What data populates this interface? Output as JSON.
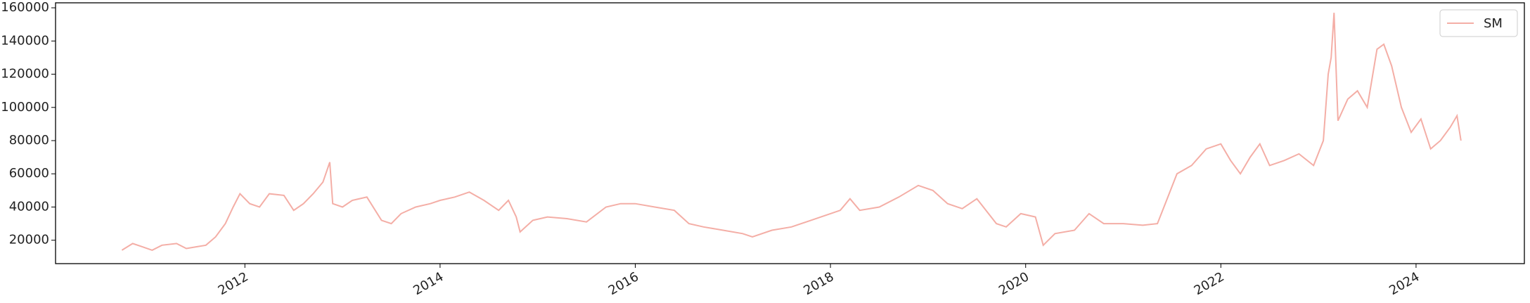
{
  "chart_data": {
    "type": "line",
    "x": [
      2010.74,
      2010.85,
      2010.95,
      2011.05,
      2011.15,
      2011.3,
      2011.4,
      2011.5,
      2011.6,
      2011.7,
      2011.8,
      2011.88,
      2011.95,
      2012.05,
      2012.15,
      2012.25,
      2012.4,
      2012.5,
      2012.6,
      2012.7,
      2012.8,
      2012.87,
      2012.9,
      2013.0,
      2013.1,
      2013.25,
      2013.4,
      2013.5,
      2013.6,
      2013.75,
      2013.9,
      2014.0,
      2014.15,
      2014.3,
      2014.45,
      2014.6,
      2014.7,
      2014.78,
      2014.82,
      2014.95,
      2015.1,
      2015.3,
      2015.5,
      2015.7,
      2015.85,
      2016.0,
      2016.2,
      2016.4,
      2016.55,
      2016.7,
      2016.9,
      2017.1,
      2017.2,
      2017.4,
      2017.6,
      2017.8,
      2018.0,
      2018.1,
      2018.2,
      2018.3,
      2018.5,
      2018.7,
      2018.9,
      2019.05,
      2019.2,
      2019.35,
      2019.5,
      2019.7,
      2019.8,
      2019.95,
      2020.1,
      2020.18,
      2020.3,
      2020.5,
      2020.65,
      2020.8,
      2021.0,
      2021.2,
      2021.35,
      2021.45,
      2021.55,
      2021.7,
      2021.85,
      2022.0,
      2022.1,
      2022.2,
      2022.3,
      2022.4,
      2022.5,
      2022.65,
      2022.8,
      2022.95,
      2023.05,
      2023.1,
      2023.13,
      2023.16,
      2023.2,
      2023.3,
      2023.4,
      2023.5,
      2023.6,
      2023.67,
      2023.75,
      2023.85,
      2023.95,
      2024.05,
      2024.15,
      2024.25,
      2024.35,
      2024.42,
      2024.46
    ],
    "series": [
      {
        "name": "SM",
        "color": "#f4aea6",
        "values": [
          14000,
          18000,
          16000,
          14000,
          17000,
          18000,
          15000,
          16000,
          17000,
          22000,
          30000,
          40000,
          48000,
          42000,
          40000,
          48000,
          47000,
          38000,
          42000,
          48000,
          55000,
          67000,
          42000,
          40000,
          44000,
          46000,
          32000,
          30000,
          36000,
          40000,
          42000,
          44000,
          46000,
          49000,
          44000,
          38000,
          44000,
          34000,
          25000,
          32000,
          34000,
          33000,
          31000,
          40000,
          42000,
          42000,
          40000,
          38000,
          30000,
          28000,
          26000,
          24000,
          22000,
          26000,
          28000,
          32000,
          36000,
          38000,
          45000,
          38000,
          40000,
          46000,
          53000,
          50000,
          42000,
          39000,
          45000,
          30000,
          28000,
          36000,
          34000,
          17000,
          24000,
          26000,
          36000,
          30000,
          30000,
          29000,
          30000,
          45000,
          60000,
          65000,
          75000,
          78000,
          68000,
          60000,
          70000,
          78000,
          65000,
          68000,
          72000,
          65000,
          80000,
          120000,
          130000,
          157000,
          92000,
          105000,
          110000,
          100000,
          135000,
          138000,
          125000,
          100000,
          85000,
          93000,
          75000,
          80000,
          88000,
          95000,
          80000
        ]
      }
    ],
    "xlim": [
      2010.06,
      2025.11
    ],
    "xticks": [
      2012,
      2014,
      2016,
      2018,
      2020,
      2022,
      2024
    ],
    "ylim": [
      5900,
      163000
    ],
    "yticks": [
      20000,
      40000,
      60000,
      80000,
      100000,
      120000,
      140000,
      160000
    ],
    "legend": "upper right"
  }
}
